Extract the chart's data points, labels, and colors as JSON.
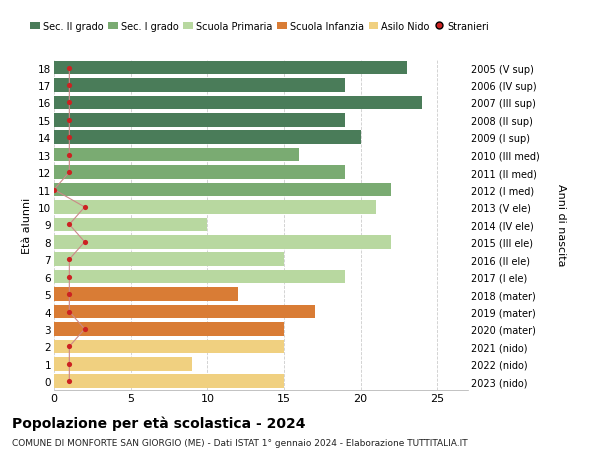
{
  "ages": [
    18,
    17,
    16,
    15,
    14,
    13,
    12,
    11,
    10,
    9,
    8,
    7,
    6,
    5,
    4,
    3,
    2,
    1,
    0
  ],
  "right_labels": [
    "2005 (V sup)",
    "2006 (IV sup)",
    "2007 (III sup)",
    "2008 (II sup)",
    "2009 (I sup)",
    "2010 (III med)",
    "2011 (II med)",
    "2012 (I med)",
    "2013 (V ele)",
    "2014 (IV ele)",
    "2015 (III ele)",
    "2016 (II ele)",
    "2017 (I ele)",
    "2018 (mater)",
    "2019 (mater)",
    "2020 (mater)",
    "2021 (nido)",
    "2022 (nido)",
    "2023 (nido)"
  ],
  "bar_values": [
    23,
    19,
    24,
    19,
    20,
    16,
    19,
    22,
    21,
    10,
    22,
    15,
    19,
    12,
    17,
    15,
    15,
    9,
    15
  ],
  "stranieri": [
    1,
    1,
    1,
    1,
    1,
    1,
    1,
    0,
    2,
    1,
    2,
    1,
    1,
    1,
    1,
    2,
    1,
    1,
    1
  ],
  "bar_colors": [
    "#4a7c59",
    "#4a7c59",
    "#4a7c59",
    "#4a7c59",
    "#4a7c59",
    "#7aab72",
    "#7aab72",
    "#7aab72",
    "#b8d8a0",
    "#b8d8a0",
    "#b8d8a0",
    "#b8d8a0",
    "#b8d8a0",
    "#d97c35",
    "#d97c35",
    "#d97c35",
    "#f0d080",
    "#f0d080",
    "#f0d080"
  ],
  "legend_colors": [
    "#4a7c59",
    "#7aab72",
    "#b8d8a0",
    "#d97c35",
    "#f0d080",
    "#cc2222"
  ],
  "legend_labels": [
    "Sec. II grado",
    "Sec. I grado",
    "Scuola Primaria",
    "Scuola Infanzia",
    "Asilo Nido",
    "Stranieri"
  ],
  "ylabel": "Età alunni",
  "right_ylabel": "Anni di nascita",
  "title": "Popolazione per età scolastica - 2024",
  "subtitle": "COMUNE DI MONFORTE SAN GIORGIO (ME) - Dati ISTAT 1° gennaio 2024 - Elaborazione TUTTITALIA.IT",
  "xlim": [
    0,
    27
  ],
  "bar_height": 0.78,
  "bg_color": "#ffffff",
  "grid_color": "#cccccc",
  "stranieri_color": "#cc2222",
  "stranieri_line_color": "#cc8888"
}
